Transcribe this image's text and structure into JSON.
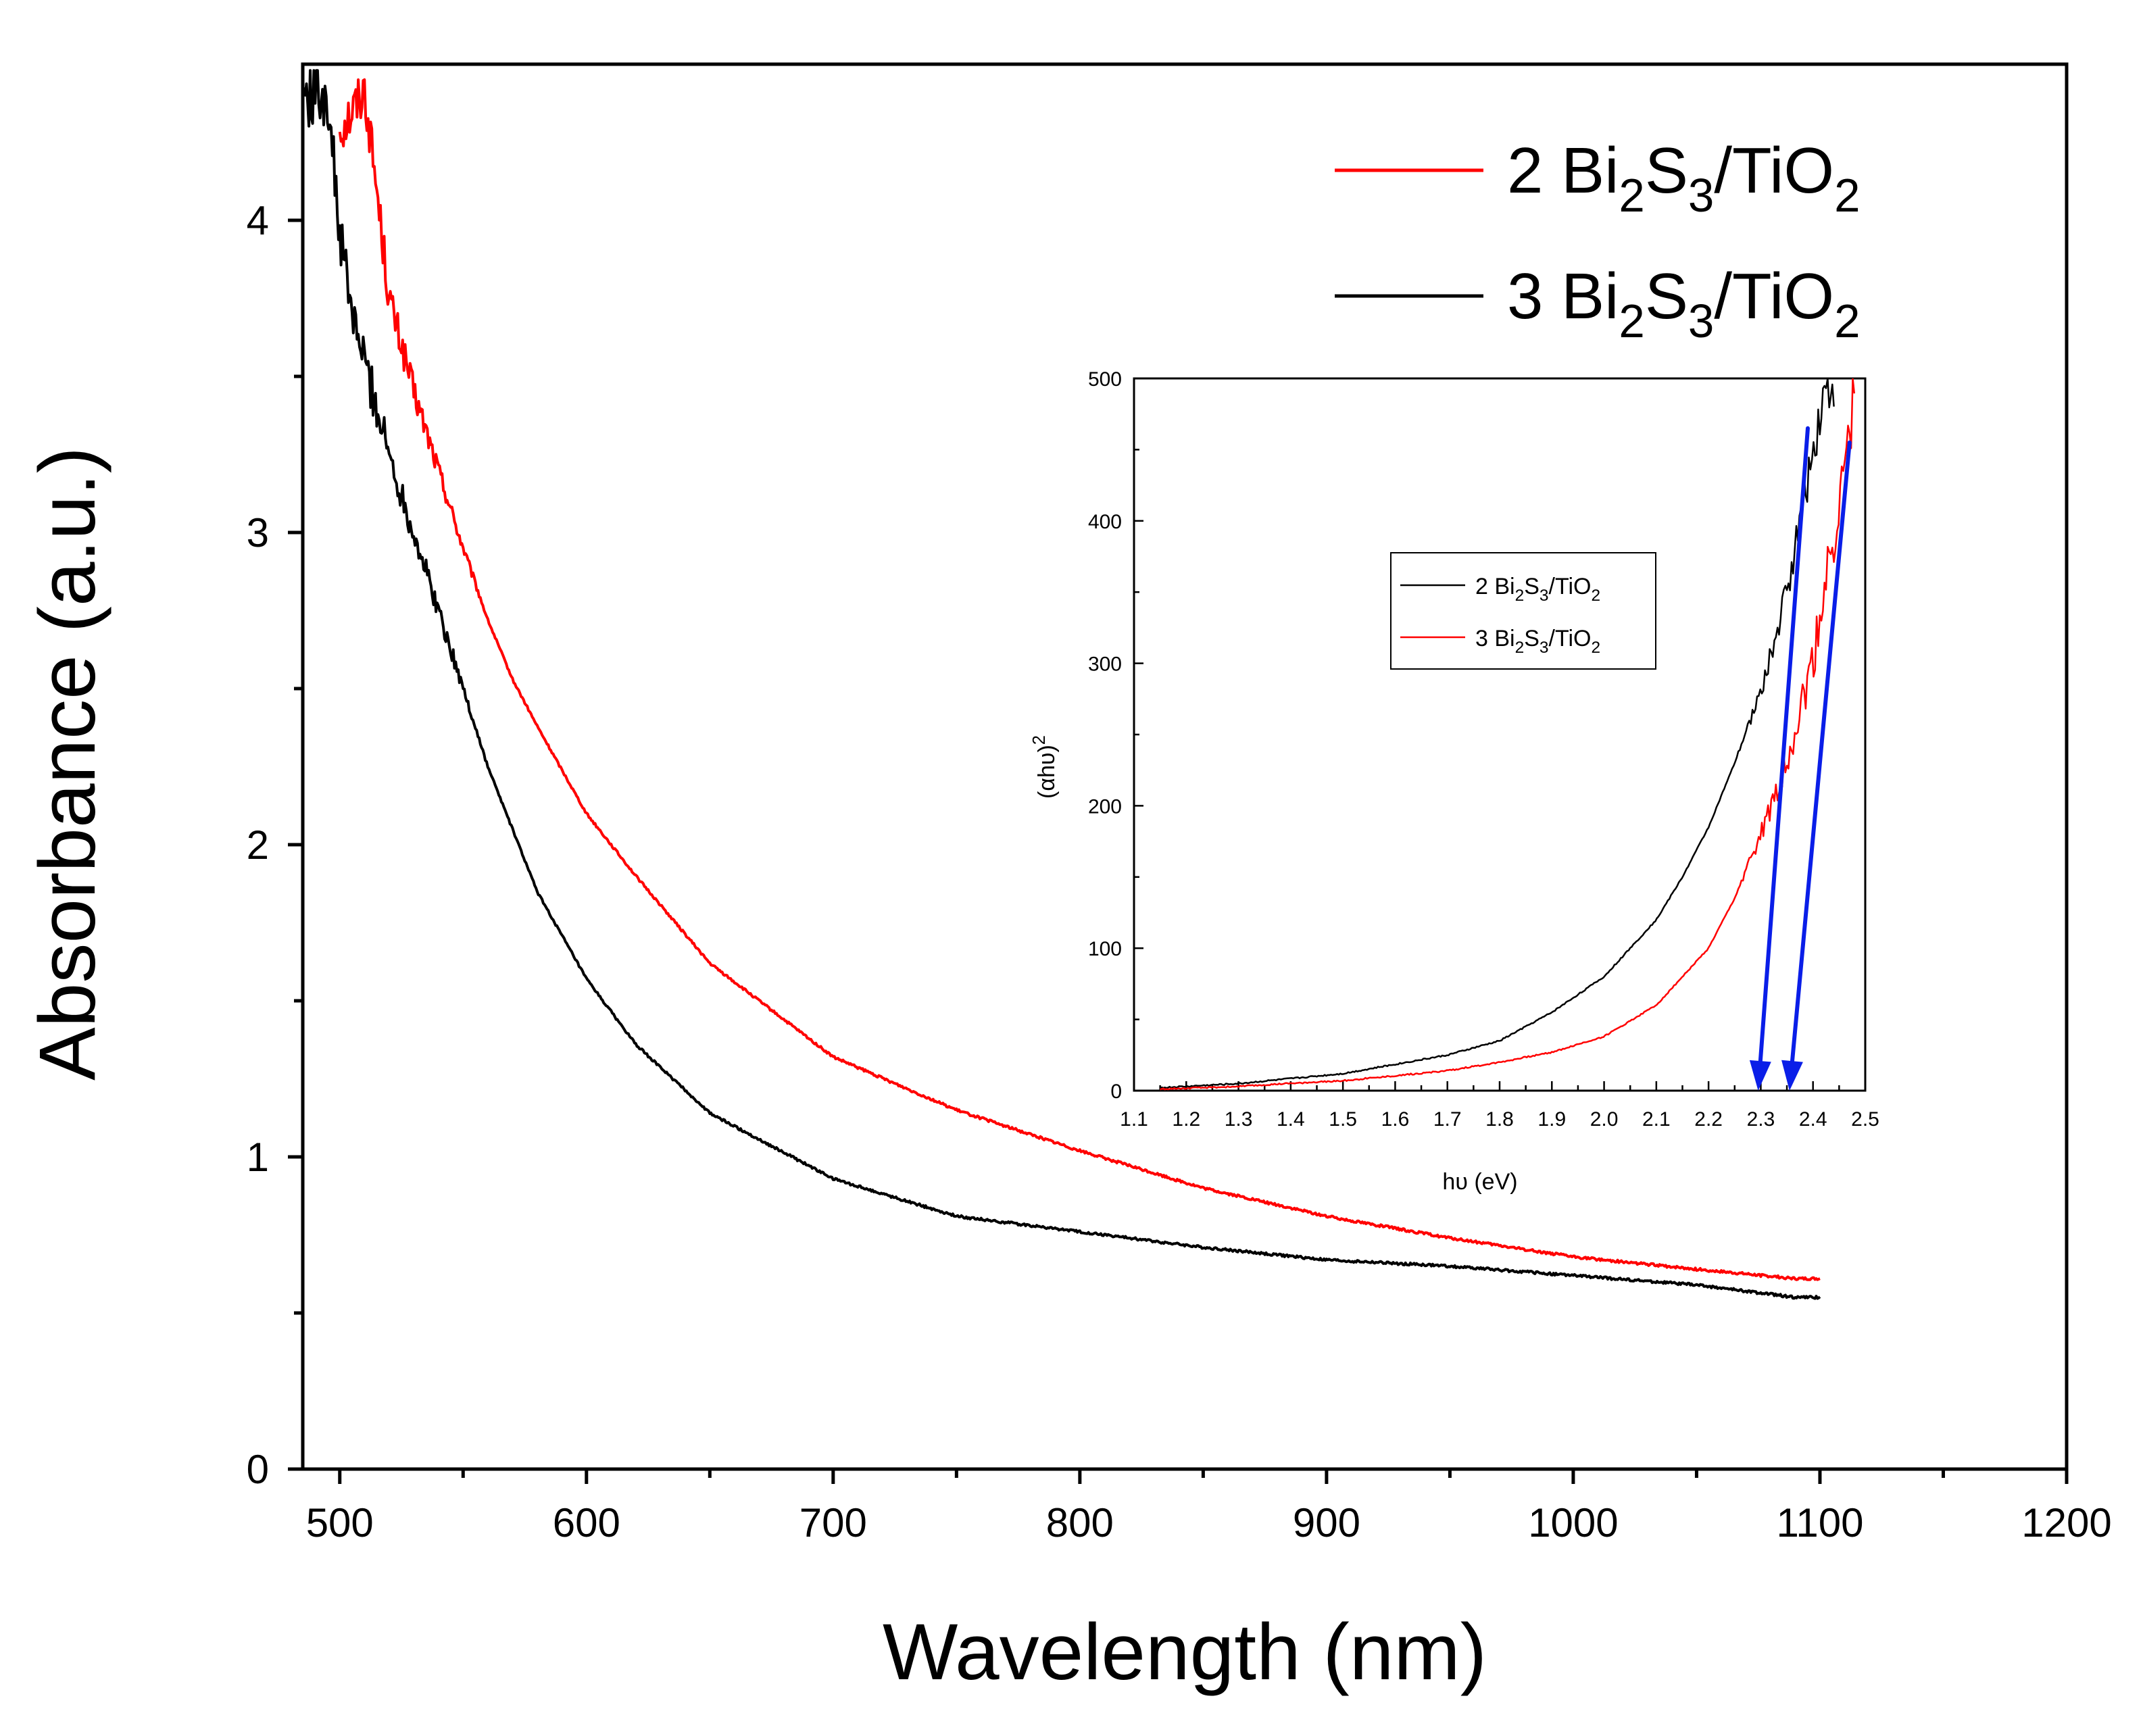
{
  "colors": {
    "series_2": "#ff0000",
    "series_3": "#000000",
    "arrow": "#0a1ee8",
    "axis": "#000000",
    "background": "#ffffff"
  },
  "chart_data": [
    {
      "id": "main",
      "type": "line",
      "title": "",
      "xlabel": "Wavelength (nm)",
      "ylabel": "Absorbance (a.u.)",
      "xlim": [
        485,
        1200
      ],
      "ylim": [
        0,
        4.5
      ],
      "xticks": [
        500,
        600,
        700,
        800,
        900,
        1000,
        1100,
        1200
      ],
      "xtick_labels": [
        "500",
        "600",
        "700",
        "800",
        "900",
        "1000",
        "1100",
        "1200"
      ],
      "yticks": [
        0,
        1,
        2,
        3,
        4
      ],
      "ytick_labels": [
        "0",
        "1",
        "2",
        "3",
        "4"
      ],
      "grid": false,
      "legend_position": "top-right",
      "series": [
        {
          "name": "2 Bi2S3/TiO2",
          "name_parts": [
            "2 Bi",
            "2",
            "S",
            "3",
            "/TiO",
            "2"
          ],
          "color": "#ff0000",
          "x": [
            500,
            505,
            510,
            515,
            520,
            530,
            540,
            550,
            560,
            570,
            580,
            600,
            620,
            650,
            700,
            750,
            800,
            850,
            900,
            950,
            1000,
            1050,
            1090,
            1100
          ],
          "y": [
            4.3,
            4.35,
            4.42,
            4.1,
            3.75,
            3.45,
            3.2,
            2.95,
            2.72,
            2.53,
            2.38,
            2.1,
            1.9,
            1.62,
            1.32,
            1.15,
            1.02,
            0.9,
            0.81,
            0.74,
            0.68,
            0.64,
            0.61,
            0.61
          ]
        },
        {
          "name": "3 Bi2S3/TiO2",
          "name_parts": [
            "3 Bi",
            "2",
            "S",
            "3",
            "/TiO",
            "2"
          ],
          "color": "#000000",
          "x": [
            485,
            490,
            495,
            500,
            505,
            510,
            520,
            530,
            540,
            550,
            560,
            580,
            600,
            620,
            650,
            700,
            750,
            800,
            850,
            900,
            950,
            1000,
            1050,
            1090,
            1100
          ],
          "y": [
            4.4,
            4.42,
            4.4,
            3.95,
            3.7,
            3.55,
            3.25,
            3.0,
            2.75,
            2.5,
            2.25,
            1.85,
            1.57,
            1.36,
            1.14,
            0.93,
            0.81,
            0.76,
            0.71,
            0.67,
            0.65,
            0.62,
            0.59,
            0.55,
            0.55
          ]
        }
      ]
    },
    {
      "id": "inset",
      "type": "line",
      "title": "",
      "xlabel": "hυ (eV)",
      "ylabel_base": "(αhυ)",
      "ylabel_sup": "2",
      "xlim": [
        1.1,
        2.5
      ],
      "ylim": [
        0,
        500
      ],
      "xticks": [
        1.1,
        1.2,
        1.3,
        1.4,
        1.5,
        1.6,
        1.7,
        1.8,
        1.9,
        2.0,
        2.1,
        2.2,
        2.3,
        2.4,
        2.5
      ],
      "xtick_labels": [
        "1.1",
        "1.2",
        "1.3",
        "1.4",
        "1.5",
        "1.6",
        "1.7",
        "1.8",
        "1.9",
        "2.0",
        "2.1",
        "2.2",
        "2.3",
        "2.4",
        "2.5"
      ],
      "yticks": [
        0,
        100,
        200,
        300,
        400,
        500
      ],
      "ytick_labels": [
        "0",
        "100",
        "200",
        "300",
        "400",
        "500"
      ],
      "grid": false,
      "legend_position": "center-left",
      "series": [
        {
          "name": "2 Bi2S3/TiO2",
          "name_parts": [
            "2 Bi",
            "2",
            "S",
            "3",
            "/TiO",
            "2"
          ],
          "color": "#000000",
          "x": [
            1.15,
            1.3,
            1.5,
            1.7,
            1.8,
            1.9,
            2.0,
            2.1,
            2.15,
            2.2,
            2.25,
            2.3,
            2.33,
            2.36,
            2.39,
            2.42,
            2.44
          ],
          "y": [
            2,
            5,
            12,
            25,
            35,
            55,
            80,
            120,
            150,
            185,
            230,
            280,
            320,
            370,
            430,
            490,
            500
          ]
        },
        {
          "name": "3 Bi2S3/TiO2",
          "name_parts": [
            "3 Bi",
            "2",
            "S",
            "3",
            "/TiO",
            "2"
          ],
          "color": "#ff0000",
          "x": [
            1.15,
            1.3,
            1.5,
            1.7,
            1.8,
            1.9,
            2.0,
            2.1,
            2.2,
            2.25,
            2.3,
            2.35,
            2.4,
            2.43,
            2.46,
            2.48
          ],
          "y": [
            1,
            3,
            7,
            14,
            20,
            27,
            38,
            60,
            100,
            135,
            180,
            230,
            300,
            370,
            430,
            500
          ]
        }
      ],
      "arrows": [
        {
          "from": [
            2.39,
            465
          ],
          "to": [
            2.295,
            0
          ]
        },
        {
          "from": [
            2.47,
            455
          ],
          "to": [
            2.355,
            0
          ]
        }
      ]
    }
  ]
}
